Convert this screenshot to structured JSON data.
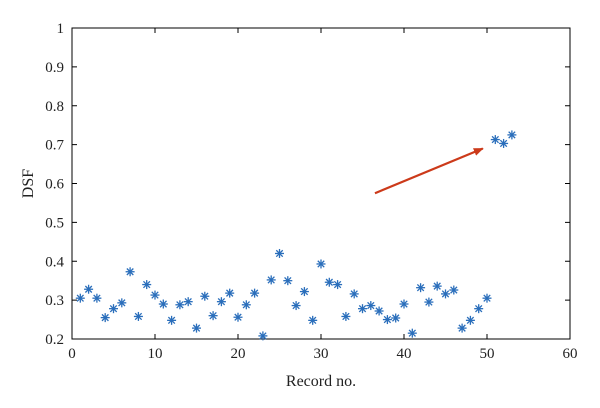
{
  "chart_data": {
    "type": "scatter",
    "title": "",
    "xlabel": "Record no.",
    "ylabel": "DSF",
    "xlim": [
      0,
      60
    ],
    "ylim": [
      0.2,
      1
    ],
    "xticks": [
      "0",
      "10",
      "20",
      "30",
      "40",
      "50",
      "60"
    ],
    "yticks": [
      "0.2",
      "0.3",
      "0.4",
      "0.5",
      "0.6",
      "0.7",
      "0.8",
      "0.9",
      "1"
    ],
    "grid": false,
    "marker": "asterisk",
    "marker_color": "#2a6ebb",
    "x": [
      1,
      2,
      3,
      4,
      5,
      6,
      7,
      8,
      9,
      10,
      11,
      12,
      13,
      14,
      15,
      16,
      17,
      18,
      19,
      20,
      21,
      22,
      23,
      24,
      25,
      26,
      27,
      28,
      29,
      30,
      31,
      32,
      33,
      34,
      35,
      36,
      37,
      38,
      39,
      40,
      41,
      42,
      43,
      44,
      45,
      46,
      47,
      48,
      49,
      50,
      51,
      52,
      53
    ],
    "y": [
      0.305,
      0.328,
      0.305,
      0.255,
      0.278,
      0.293,
      0.373,
      0.258,
      0.34,
      0.313,
      0.29,
      0.248,
      0.288,
      0.296,
      0.228,
      0.31,
      0.26,
      0.296,
      0.318,
      0.256,
      0.288,
      0.318,
      0.208,
      0.352,
      0.42,
      0.35,
      0.286,
      0.322,
      0.248,
      0.393,
      0.346,
      0.34,
      0.258,
      0.316,
      0.278,
      0.286,
      0.272,
      0.25,
      0.254,
      0.29,
      0.215,
      0.332,
      0.295,
      0.336,
      0.316,
      0.326,
      0.228,
      0.248,
      0.278,
      0.305,
      0.713,
      0.703,
      0.725
    ],
    "annotations": [
      {
        "type": "arrow",
        "from": [
          36.5,
          0.575
        ],
        "to": [
          49.5,
          0.69
        ],
        "color": "#cc3a1a"
      }
    ]
  }
}
